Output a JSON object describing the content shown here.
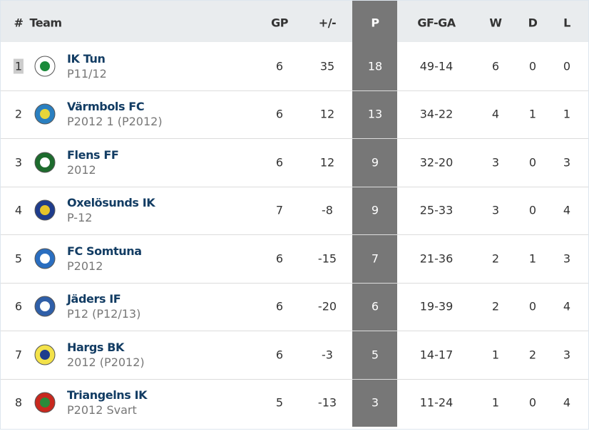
{
  "table": {
    "headers": [
      "#",
      "Team",
      "GP",
      "+/-",
      "P",
      "GF-GA",
      "W",
      "D",
      "L"
    ],
    "rows": [
      {
        "rank": 1,
        "team": "IK Tun",
        "group": "P11/12",
        "gp": 6,
        "diff": 35,
        "p": 18,
        "gfga": "49-14",
        "w": 6,
        "d": 0,
        "l": 0
      },
      {
        "rank": 2,
        "team": "Värmbols FC",
        "group": "P2012 1 (P2012)",
        "gp": 6,
        "diff": 12,
        "p": 13,
        "gfga": "34-22",
        "w": 4,
        "d": 1,
        "l": 1
      },
      {
        "rank": 3,
        "team": "Flens FF",
        "group": "2012",
        "gp": 6,
        "diff": 12,
        "p": 9,
        "gfga": "32-20",
        "w": 3,
        "d": 0,
        "l": 3
      },
      {
        "rank": 4,
        "team": "Oxelösunds IK",
        "group": "P-12",
        "gp": 7,
        "diff": -8,
        "p": 9,
        "gfga": "25-33",
        "w": 3,
        "d": 0,
        "l": 4
      },
      {
        "rank": 5,
        "team": "FC Somtuna",
        "group": "P2012",
        "gp": 6,
        "diff": -15,
        "p": 7,
        "gfga": "21-36",
        "w": 2,
        "d": 1,
        "l": 3
      },
      {
        "rank": 6,
        "team": "Jäders IF",
        "group": "P12 (P12/13)",
        "gp": 6,
        "diff": -20,
        "p": 6,
        "gfga": "19-39",
        "w": 2,
        "d": 0,
        "l": 4
      },
      {
        "rank": 7,
        "team": "Hargs BK",
        "group": "2012 (P2012)",
        "gp": 6,
        "diff": -3,
        "p": 5,
        "gfga": "14-17",
        "w": 1,
        "d": 2,
        "l": 3
      },
      {
        "rank": 8,
        "team": "Triangelns IK",
        "group": "P2012 Svart",
        "gp": 5,
        "diff": -13,
        "p": 3,
        "gfga": "11-24",
        "w": 1,
        "d": 0,
        "l": 4
      }
    ]
  }
}
